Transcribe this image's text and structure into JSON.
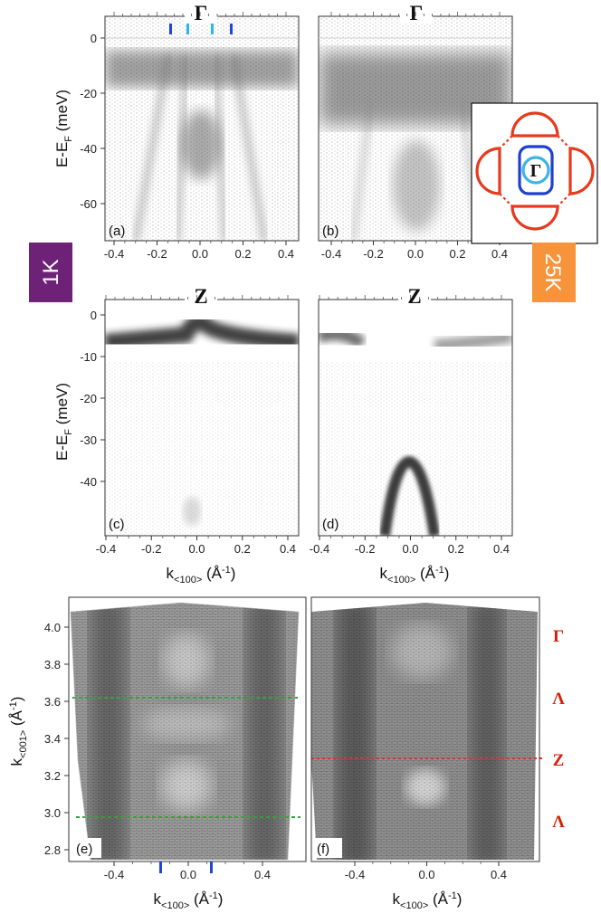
{
  "colors": {
    "badge_1k": "#6e2277",
    "badge_25k": "#f7933a",
    "bz_outer": "#e8391c",
    "bz_mid": "#1e3fd0",
    "bz_inner": "#3cb4e6",
    "marker_dark": "#1f47d8",
    "marker_light": "#2fb4e8",
    "green_dash": "#2ea43c",
    "red_dash": "#e03030"
  },
  "badges": {
    "left": "1K",
    "right": "25K"
  },
  "panels": {
    "a": {
      "letter": "(a)",
      "symbol": "Γ",
      "x_ticks": [
        "-0.4",
        "-0.2",
        "0.0",
        "0.2",
        "0.4"
      ],
      "y_ticks": [
        "0",
        "-20",
        "-40",
        "-60"
      ],
      "y_label": "E-E",
      "y_sub": "F",
      "y_unit": " (meV)"
    },
    "b": {
      "letter": "(b)",
      "symbol": "Γ",
      "x_ticks": [
        "-0.4",
        "-0.2",
        "0.0",
        "0.2",
        "0.4"
      ]
    },
    "c": {
      "letter": "(c)",
      "symbol": "Z",
      "x_ticks": [
        "-0.4",
        "-0.2",
        "0.0",
        "0.2",
        "0.4"
      ],
      "y_ticks": [
        "0",
        "-10",
        "-20",
        "-30",
        "-40"
      ],
      "y_label": "E-E",
      "y_sub": "F",
      "y_unit": " (meV)",
      "x_label": "k",
      "x_sub": "<100>",
      "x_unit": " (Å",
      "x_sup": "-1",
      "x_close": ")"
    },
    "d": {
      "letter": "(d)",
      "symbol": "Z",
      "x_ticks": [
        "-0.4",
        "-0.2",
        "0.0",
        "0.2",
        "0.4"
      ],
      "x_label": "k",
      "x_sub": "<100>",
      "x_unit": " (Å",
      "x_sup": "-1",
      "x_close": ")"
    },
    "e": {
      "letter": "(e)",
      "x_ticks": [
        "-0.4",
        "0.0",
        "0.4"
      ],
      "y_ticks": [
        "4.0",
        "3.8",
        "3.6",
        "3.4",
        "3.2",
        "3.0",
        "2.8"
      ],
      "y_label": "k",
      "y_sub": "<001>",
      "y_unit": " (Å",
      "y_sup": "-1",
      "y_close": ")",
      "x_label": "k",
      "x_sub": "<100>",
      "x_unit": " (Å",
      "x_sup": "-1",
      "x_close": ")"
    },
    "f": {
      "letter": "(f)",
      "x_ticks": [
        "-0.4",
        "0.0",
        "0.4"
      ],
      "x_label": "k",
      "x_sub": "<100>",
      "x_unit": " (Å",
      "x_sup": "-1",
      "x_close": ")"
    }
  },
  "inset": {
    "center_label": "Γ"
  },
  "side_labels": [
    "Γ",
    "Λ",
    "Z",
    "Λ"
  ]
}
